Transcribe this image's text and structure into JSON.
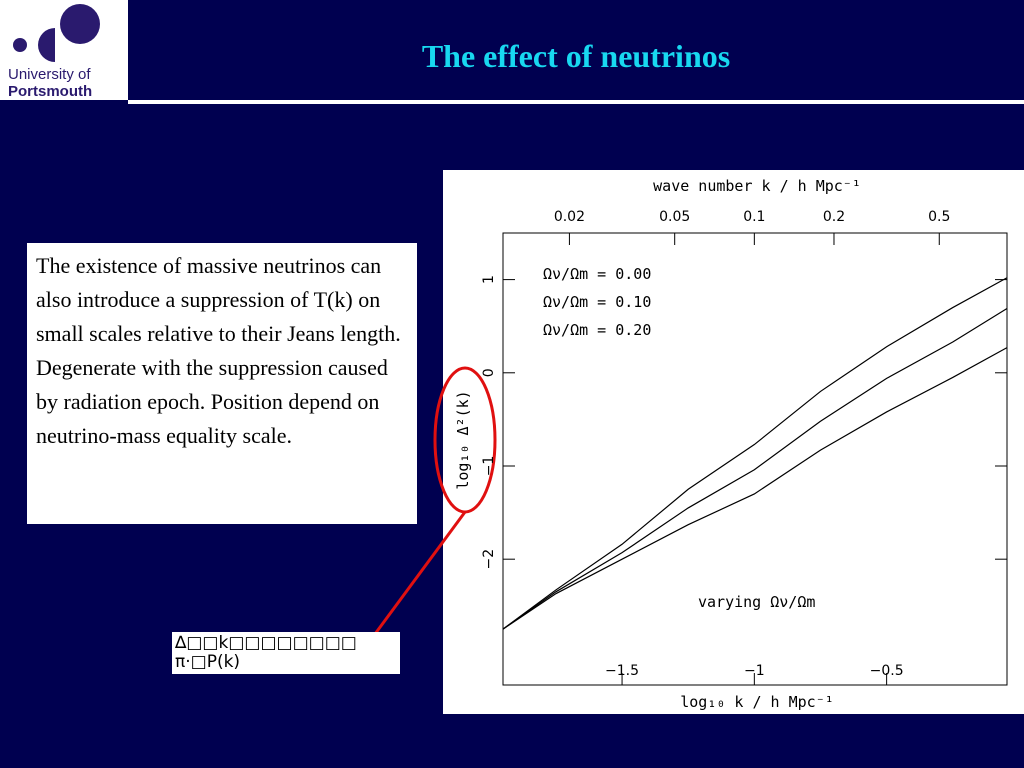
{
  "header": {
    "title": "The effect of neutrinos",
    "logo": {
      "line1": "University of",
      "line2": "Portsmouth"
    }
  },
  "text_box": "The existence of massive neutrinos can also introduce a suppression of T(k) on small scales relative to their Jeans length. Degenerate with the suppression caused by radiation epoch. Position depend on neutrino-mass equality scale.",
  "formula": {
    "line1": "∆□□k□□□□□□□□",
    "line2": "π·□P(k)"
  },
  "chart_data": {
    "type": "line",
    "x_label_top": "wave number k / h Mpc⁻¹",
    "x_label": "log₁₀ k / h Mpc⁻¹",
    "y_label": "log₁₀ Δ²(k)",
    "annotation": "varying Ων/Ωm",
    "x": [
      -1.95,
      -1.75,
      -1.5,
      -1.25,
      -1,
      -0.75,
      -0.5,
      -0.25,
      -0.045
    ],
    "series": [
      {
        "name": "Ων/Ωm = 0.00",
        "color": "#000000",
        "values": [
          -2.75,
          -2.33,
          -1.84,
          -1.25,
          -0.77,
          -0.2,
          0.28,
          0.7,
          1.02
        ]
      },
      {
        "name": "Ων/Ωm = 0.10",
        "color": "#000000",
        "values": [
          -2.75,
          -2.35,
          -1.93,
          -1.45,
          -1.04,
          -0.52,
          -0.06,
          0.33,
          0.69
        ]
      },
      {
        "name": "Ων/Ωm = 0.20",
        "color": "#000000",
        "values": [
          -2.75,
          -2.37,
          -2.0,
          -1.63,
          -1.3,
          -0.83,
          -0.42,
          -0.05,
          0.27
        ]
      }
    ],
    "xlim": [
      -1.95,
      -0.045
    ],
    "ylim": [
      -3.35,
      1.5
    ],
    "xticks": [
      {
        "value": -1.5,
        "label": "−1.5"
      },
      {
        "value": -1,
        "label": "−1"
      },
      {
        "value": -0.5,
        "label": "−0.5"
      }
    ],
    "yticks": [
      {
        "value": -2,
        "label": "−2"
      },
      {
        "value": -1,
        "label": "−1"
      },
      0,
      1
    ],
    "x2ticks": [
      0.02,
      0.05,
      0.1,
      0.2,
      0.5
    ],
    "x2_scale": "log"
  }
}
